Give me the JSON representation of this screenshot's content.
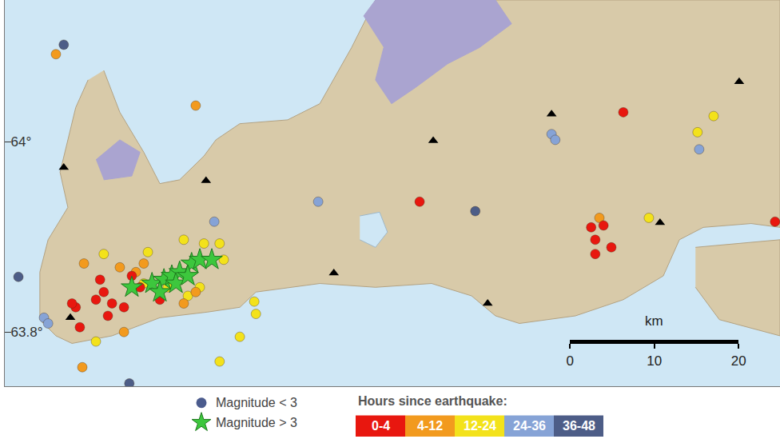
{
  "chart_data": {
    "type": "map",
    "xlim": [
      -22.88,
      -21.0
    ],
    "ylim": [
      63.743,
      64.149
    ],
    "yticks": [
      {
        "value": 63.8,
        "label": "63.8°"
      },
      {
        "value": 64,
        "label": "64°"
      }
    ],
    "tick_labels": "y",
    "land": [
      {
        "x": [
          -22.64,
          -22.601,
          -22.543,
          -22.504,
          -22.456,
          -22.397,
          -22.368,
          -22.31,
          -22.194,
          -22.116,
          -22.039,
          -21.981,
          -21.0,
          -21.0,
          -21.07,
          -21.186,
          -21.244,
          -21.283,
          -21.38,
          -21.496,
          -21.632,
          -21.69,
          -21.748,
          -21.845,
          -21.981,
          -22.116,
          -22.271,
          -22.31,
          -22.388,
          -22.504,
          -22.62,
          -22.717,
          -22.756,
          -22.795,
          -22.795,
          -22.775,
          -22.727,
          -22.746,
          -22.708,
          -22.678
        ],
        "y": [
          64.075,
          64.031,
          63.989,
          63.956,
          63.96,
          63.985,
          64.002,
          64.019,
          64.023,
          64.04,
          64.099,
          64.149,
          64.149,
          63.91,
          63.914,
          63.91,
          63.897,
          63.859,
          63.834,
          63.817,
          63.809,
          63.817,
          63.838,
          63.851,
          63.847,
          63.851,
          63.842,
          63.826,
          63.821,
          63.815,
          63.796,
          63.788,
          63.796,
          63.813,
          63.863,
          63.897,
          63.931,
          63.968,
          64.036,
          64.065
        ]
      },
      {
        "x": [
          -21.205,
          -21.0,
          -21.0,
          -21.147,
          -21.205
        ],
        "y": [
          63.889,
          63.897,
          63.796,
          63.813,
          63.847
        ]
      }
    ],
    "lava": [
      {
        "x": [
          -22.01,
          -21.981,
          -21.69,
          -21.651,
          -21.729,
          -21.806,
          -21.884,
          -21.942,
          -21.981,
          -21.961
        ],
        "y": [
          64.132,
          64.149,
          64.149,
          64.124,
          64.099,
          64.082,
          64.057,
          64.04,
          64.065,
          64.099
        ]
      },
      {
        "x": [
          -22.659,
          -22.601,
          -22.552,
          -22.572,
          -22.64
        ],
        "y": [
          63.981,
          64.002,
          63.989,
          63.964,
          63.96
        ]
      }
    ],
    "lakes": [
      {
        "x": [
          -22.019,
          -21.971,
          -21.952,
          -21.981,
          -22.019
        ],
        "y": [
          63.922,
          63.926,
          63.905,
          63.889,
          63.897
        ]
      }
    ],
    "stations": {
      "marker": "triangle-up",
      "color": "#000000",
      "x": [
        -22.737,
        -22.392,
        -21.841,
        -21.554,
        -21.099,
        -22.082,
        -21.709,
        -21.291,
        -22.721
      ],
      "y": [
        63.973,
        63.959,
        64.001,
        64.029,
        64.063,
        63.862,
        63.83,
        63.915,
        63.815
      ]
    },
    "circle_key": {
      "name": "Magnitude < 3",
      "marker": "circle",
      "color": "#4b5b8d"
    },
    "hours_title": "Hours since earthquake:",
    "series": [
      {
        "name": "0-4",
        "marker": "circle",
        "color": "#e8170f",
        "x": [
          -22.708,
          -22.698,
          -22.649,
          -22.64,
          -22.659,
          -22.62,
          -22.63,
          -22.572,
          -22.552,
          -22.504,
          -22.591,
          -22.717,
          -21.874,
          -21.458,
          -21.428,
          -21.448,
          -21.409,
          -21.448,
          -21.38,
          -21.012
        ],
        "y": [
          63.826,
          63.805,
          63.855,
          63.842,
          63.834,
          63.83,
          63.817,
          63.859,
          63.847,
          63.834,
          63.826,
          63.83,
          63.937,
          63.91,
          63.912,
          63.897,
          63.889,
          63.882,
          64.031,
          63.916
        ]
      },
      {
        "name": "4-12",
        "marker": "circle",
        "color": "#f29a1e",
        "x": [
          -22.756,
          -22.417,
          -22.688,
          -22.601,
          -22.543,
          -22.446,
          -22.417,
          -22.591,
          -22.692,
          -21.438,
          -22.562
        ],
        "y": [
          64.092,
          64.038,
          63.872,
          63.868,
          63.872,
          63.83,
          63.842,
          63.8,
          63.763,
          63.92,
          63.863
        ]
      },
      {
        "name": "12-24",
        "marker": "circle",
        "color": "#f3e21b",
        "x": [
          -22.64,
          -22.533,
          -22.446,
          -22.397,
          -22.359,
          -22.349,
          -22.436,
          -22.407,
          -22.659,
          -22.359,
          -22.31,
          -22.275,
          -22.271,
          -21.2,
          -21.161,
          -21.318,
          -22.543,
          -22.485
        ],
        "y": [
          63.882,
          63.884,
          63.897,
          63.893,
          63.893,
          63.876,
          63.838,
          63.847,
          63.79,
          63.769,
          63.795,
          63.832,
          63.819,
          64.01,
          64.027,
          63.92,
          63.851,
          63.847
        ]
      },
      {
        "name": "24-36",
        "marker": "circle",
        "color": "#86a3d6",
        "x": [
          -22.785,
          -22.775,
          -22.372,
          -22.12,
          -21.554,
          -21.545,
          -21.196
        ],
        "y": [
          63.815,
          63.809,
          63.916,
          63.937,
          64.008,
          64.002,
          63.992
        ]
      },
      {
        "name": "36-48",
        "marker": "circle",
        "color": "#4d5d87",
        "x": [
          -22.737,
          -22.847,
          -21.739,
          -22.578
        ],
        "y": [
          64.102,
          63.858,
          63.927,
          63.746
        ]
      },
      {
        "name": "Magnitude > 3",
        "marker": "star",
        "color": "#3dc73d",
        "x": [
          -22.572,
          -22.523,
          -22.494,
          -22.475,
          -22.456,
          -22.427,
          -22.407,
          -22.378,
          -22.465,
          -22.436,
          -22.504
        ],
        "y": [
          63.847,
          63.851,
          63.855,
          63.859,
          63.863,
          63.872,
          63.876,
          63.876,
          63.851,
          63.859,
          63.842
        ]
      }
    ],
    "scale_bar": {
      "label": "km",
      "range": [
        0,
        20
      ],
      "ticks": [
        0,
        10,
        20
      ]
    }
  }
}
